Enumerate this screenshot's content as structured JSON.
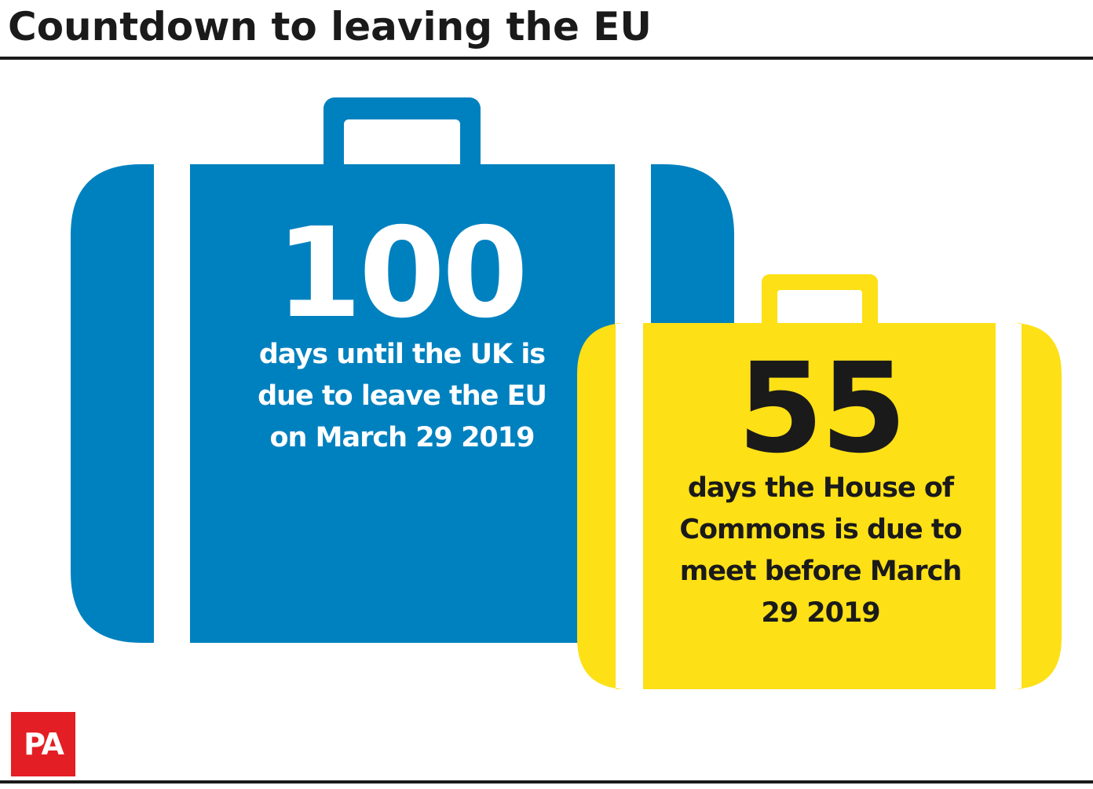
{
  "title": "Countdown to leaving the EU",
  "colors": {
    "blue_case": "#0081bf",
    "yellow_case": "#fde016",
    "text_dark": "#1a1a1a",
    "logo_red": "#e31e24"
  },
  "blue_case": {
    "number": "100",
    "caption_lines": [
      "days until the UK is",
      "due to leave the EU",
      "on March 29 2019"
    ]
  },
  "yellow_case": {
    "number": "55",
    "caption_lines": [
      "days the House of",
      "Commons is due to",
      "meet before March",
      "29 2019"
    ]
  },
  "logo": {
    "text": "PA"
  }
}
